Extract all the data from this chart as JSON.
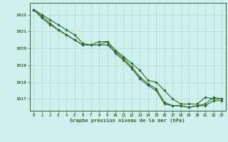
{
  "title": "Graphe pression niveau de la mer (hPa)",
  "x": [
    0,
    1,
    2,
    3,
    4,
    5,
    6,
    7,
    8,
    9,
    10,
    11,
    12,
    13,
    14,
    15,
    16,
    17,
    18,
    19,
    20,
    21,
    22,
    23
  ],
  "line1": [
    1022.3,
    1022.0,
    1021.7,
    1021.4,
    1021.1,
    1020.8,
    1020.3,
    1020.2,
    1020.2,
    1020.4,
    1019.9,
    1019.5,
    1019.1,
    1018.7,
    1018.1,
    1018.0,
    1017.5,
    1017.0,
    1016.7,
    1016.7,
    1016.7,
    1017.1,
    1017.0,
    1017.0
  ],
  "line2": [
    1022.3,
    1021.9,
    1021.5,
    1021.1,
    1020.8,
    1020.5,
    1020.2,
    1020.2,
    1020.2,
    1020.2,
    1019.8,
    1019.4,
    1018.9,
    1018.3,
    1017.9,
    1017.6,
    1016.8,
    1016.6,
    1016.6,
    1016.5,
    1016.6,
    1016.6,
    1016.9,
    1016.9
  ],
  "line3": [
    1022.3,
    1021.8,
    1021.4,
    1021.1,
    1020.8,
    1020.5,
    1020.2,
    1020.2,
    1020.4,
    1020.4,
    1019.7,
    1019.3,
    1018.8,
    1018.2,
    1017.8,
    1017.5,
    1016.7,
    1016.6,
    1016.6,
    1016.5,
    1016.6,
    1016.7,
    1017.1,
    1017.0
  ],
  "line_color": "#2d6a2d",
  "bg_color": "#cff0ee",
  "grid_color": "#aaddcc",
  "ylim": [
    1016.3,
    1022.7
  ],
  "yticks": [
    1017,
    1018,
    1019,
    1020,
    1021,
    1022
  ],
  "marker": "D",
  "marker_size": 1.8,
  "linewidth": 0.8
}
